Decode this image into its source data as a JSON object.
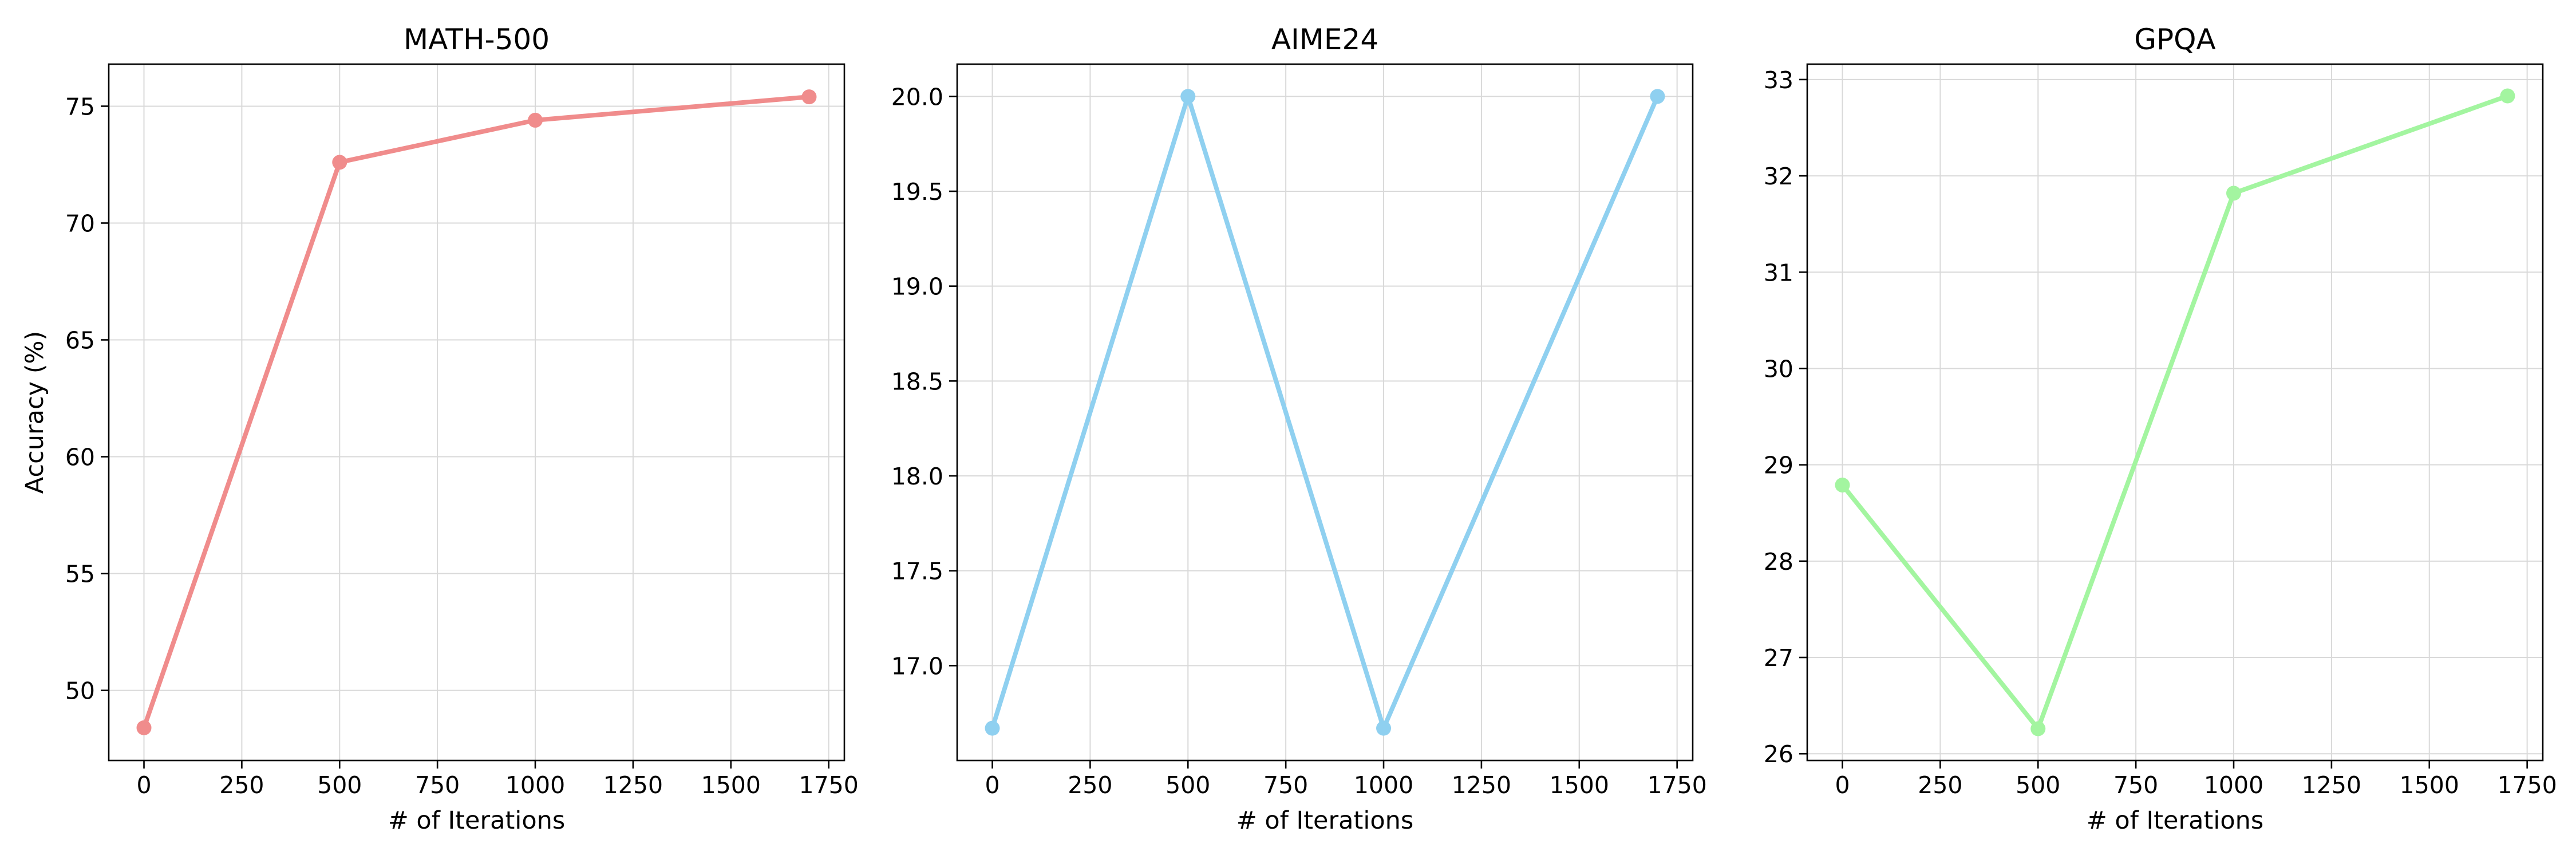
{
  "chart_data": [
    {
      "type": "line",
      "title": "MATH-500",
      "xlabel": "# of Iterations",
      "ylabel": "Accuracy (%)",
      "x": [
        0,
        500,
        1000,
        1700
      ],
      "series": [
        {
          "values": [
            48.4,
            72.6,
            74.4,
            75.4
          ],
          "color": "#f08c8c"
        }
      ],
      "xlim": [
        -90,
        1790
      ],
      "ylim": [
        47.0,
        76.8
      ],
      "xticks": [
        0,
        250,
        500,
        750,
        1000,
        1250,
        1500,
        1750
      ],
      "xtick_labels": [
        "0",
        "250",
        "500",
        "750",
        "1000",
        "1250",
        "1500",
        "1750"
      ],
      "yticks": [
        50,
        55,
        60,
        65,
        70,
        75
      ],
      "ytick_labels": [
        "50",
        "55",
        "60",
        "65",
        "70",
        "75"
      ],
      "grid": true,
      "marker": "circle"
    },
    {
      "type": "line",
      "title": "AIME24",
      "xlabel": "# of Iterations",
      "ylabel": "",
      "x": [
        0,
        500,
        1000,
        1700
      ],
      "series": [
        {
          "values": [
            16.67,
            20.0,
            16.67,
            20.0
          ],
          "color": "#8fd0f0"
        }
      ],
      "xlim": [
        -90,
        1790
      ],
      "ylim": [
        16.5,
        20.17
      ],
      "xticks": [
        0,
        250,
        500,
        750,
        1000,
        1250,
        1500,
        1750
      ],
      "xtick_labels": [
        "0",
        "250",
        "500",
        "750",
        "1000",
        "1250",
        "1500",
        "1750"
      ],
      "yticks": [
        17.0,
        17.5,
        18.0,
        18.5,
        19.0,
        19.5,
        20.0
      ],
      "ytick_labels": [
        "17.0",
        "17.5",
        "18.0",
        "18.5",
        "19.0",
        "19.5",
        "20.0"
      ],
      "grid": true,
      "marker": "circle"
    },
    {
      "type": "line",
      "title": "GPQA",
      "xlabel": "# of Iterations",
      "ylabel": "",
      "x": [
        0,
        500,
        1000,
        1700
      ],
      "series": [
        {
          "values": [
            28.79,
            26.26,
            31.82,
            32.83
          ],
          "color": "#a3f5a0"
        }
      ],
      "xlim": [
        -90,
        1790
      ],
      "ylim": [
        25.93,
        33.16
      ],
      "xticks": [
        0,
        250,
        500,
        750,
        1000,
        1250,
        1500,
        1750
      ],
      "xtick_labels": [
        "0",
        "250",
        "500",
        "750",
        "1000",
        "1250",
        "1500",
        "1750"
      ],
      "yticks": [
        26,
        27,
        28,
        29,
        30,
        31,
        32,
        33
      ],
      "ytick_labels": [
        "26",
        "27",
        "28",
        "29",
        "30",
        "31",
        "32",
        "33"
      ],
      "grid": true,
      "marker": "circle"
    }
  ]
}
